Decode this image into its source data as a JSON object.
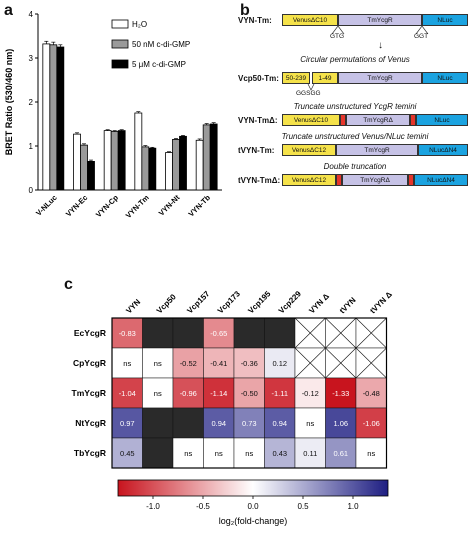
{
  "panel_letters": {
    "a": "a",
    "b": "b",
    "c": "c"
  },
  "chart_data": [
    {
      "type": "bar",
      "ylabel": "BRET Ratio (530/460 nm)",
      "ylim": [
        0,
        4
      ],
      "yticks": [
        "0",
        "1",
        "2",
        "3",
        "4"
      ],
      "categories": [
        "V-NLuc",
        "VYN-Ec",
        "VYN-Cp",
        "VYN-Tm",
        "VYN-Nt",
        "VYN-Tb"
      ],
      "series": [
        {
          "name": "H₂O",
          "color": "#ffffff",
          "values": [
            3.32,
            1.27,
            1.35,
            1.75,
            0.85,
            1.13
          ],
          "errors": [
            0.06,
            0.03,
            0.02,
            0.03,
            0.02,
            0.03
          ]
        },
        {
          "name": "50 nM c-di-GMP",
          "color": "#9a9a9a",
          "values": [
            3.3,
            1.02,
            1.33,
            0.98,
            1.15,
            1.48
          ],
          "errors": [
            0.06,
            0.03,
            0.02,
            0.03,
            0.02,
            0.03
          ]
        },
        {
          "name": "5 μM c-di-GMP",
          "color": "#000000",
          "values": [
            3.25,
            0.65,
            1.35,
            0.95,
            1.22,
            1.5
          ],
          "errors": [
            0.05,
            0.03,
            0.02,
            0.02,
            0.02,
            0.03
          ]
        }
      ]
    },
    {
      "type": "heatmap",
      "columns": [
        "VYN",
        "Vcp50",
        "Vcp157",
        "Vcp173",
        "Vcp195",
        "Vcp229",
        "VYN Δ",
        "tVYN",
        "tVYN Δ"
      ],
      "rows": [
        "EcYcgR",
        "CpYcgR",
        "TmYcgR",
        "NtYcgR",
        "TbYcgR"
      ],
      "cells": [
        [
          -0.83,
          "black",
          "black",
          -0.65,
          "black",
          "black",
          "x",
          "x",
          "x"
        ],
        [
          "ns",
          "ns",
          -0.52,
          -0.41,
          -0.36,
          0.12,
          "x",
          "x",
          "x"
        ],
        [
          -1.04,
          "ns",
          -0.96,
          -1.14,
          -0.5,
          -1.11,
          -0.12,
          -1.33,
          -0.48
        ],
        [
          0.97,
          "black",
          "black",
          0.94,
          0.73,
          0.94,
          "ns",
          1.06,
          -1.06
        ],
        [
          0.45,
          "black",
          "ns",
          "ns",
          "ns",
          0.43,
          0.11,
          0.61,
          "ns"
        ]
      ],
      "colorbar": {
        "ticks": [
          "-1.0",
          "-0.5",
          "0.0",
          "0.5",
          "1.0"
        ],
        "label": "log₂(fold-change)"
      }
    }
  ],
  "panel_b": {
    "construct1_label": "VYN-Tm:",
    "construct1": [
      "VenusΔC10",
      "TmYcgR",
      "NLuc"
    ],
    "gtg": "GTG",
    "ggt": "GGT",
    "cap1": "Circular permutations of Venus",
    "construct2_label": "Vcp50-Tm:",
    "construct2": [
      "50-239",
      "1-49",
      "TmYcgR",
      "NLuc"
    ],
    "gg": "GGSGG",
    "cap2": "Truncate unstructured YcgR temini",
    "construct3_label": "VYN-TmΔ:",
    "construct3": [
      "VenusΔC10",
      "TmYcgRΔ",
      "NLuc"
    ],
    "cap3": "Truncate unstructured Venus/NLuc temini",
    "construct4_label": "tVYN-Tm:",
    "construct4": [
      "VenusΔC12",
      "TmYcgR",
      "NLucΔN4"
    ],
    "cap4": "Double truncation",
    "construct5_label": "tVYN-TmΔ:",
    "construct5": [
      "VenusΔC12",
      "TmYcgRΔ",
      "NLucΔN4"
    ]
  }
}
